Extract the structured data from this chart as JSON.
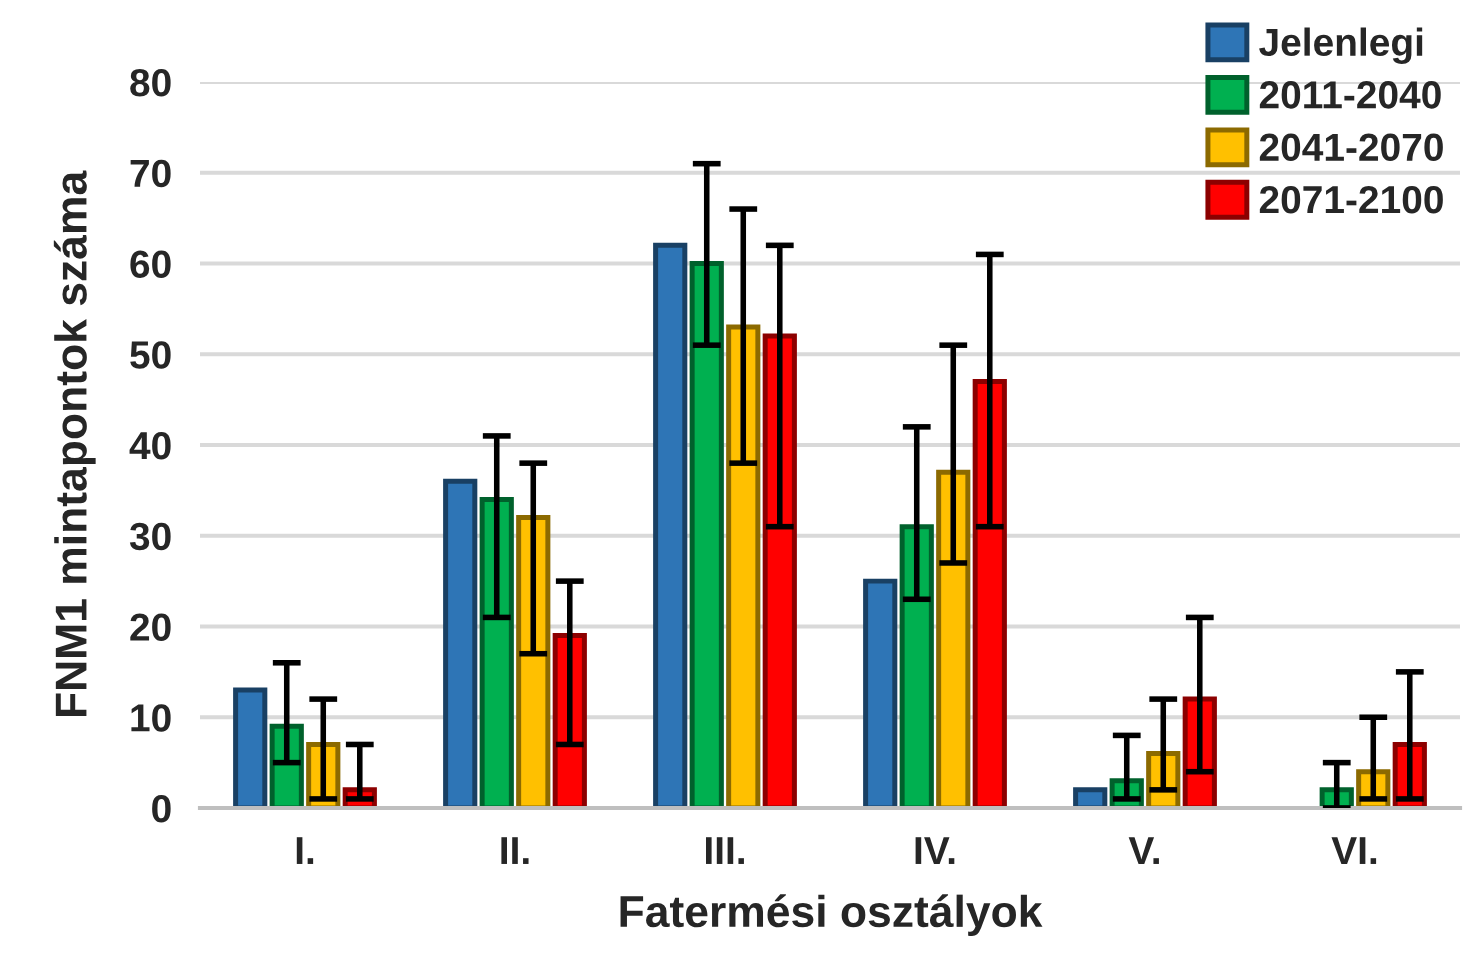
{
  "chart_data": {
    "type": "bar",
    "xlabel": "Fatermési osztályok",
    "ylabel": "FNM1 mintapontok száma",
    "categories": [
      "I.",
      "II.",
      "III.",
      "IV.",
      "V.",
      "VI."
    ],
    "series": [
      {
        "name": "Jelenlegi",
        "color": "#2e75b6",
        "values": [
          13,
          36,
          62,
          25,
          2,
          null
        ]
      },
      {
        "name": "2011-2040",
        "color": "#00b050",
        "values": [
          9,
          34,
          60,
          31,
          3,
          2
        ],
        "errors": [
          [
            5,
            16
          ],
          [
            21,
            41
          ],
          [
            51,
            71
          ],
          [
            23,
            42
          ],
          [
            1,
            8
          ],
          [
            0,
            5
          ]
        ]
      },
      {
        "name": "2041-2070",
        "color": "#ffc000",
        "values": [
          7,
          32,
          53,
          37,
          6,
          4
        ],
        "errors": [
          [
            1,
            12
          ],
          [
            17,
            38
          ],
          [
            38,
            66
          ],
          [
            27,
            51
          ],
          [
            2,
            12
          ],
          [
            1,
            10
          ]
        ]
      },
      {
        "name": "2071-2100",
        "color": "#ff0000",
        "values": [
          2,
          19,
          52,
          47,
          12,
          7
        ],
        "errors": [
          [
            1,
            7
          ],
          [
            7,
            25
          ],
          [
            31,
            62
          ],
          [
            31,
            61
          ],
          [
            4,
            21
          ],
          [
            1,
            15
          ]
        ]
      }
    ],
    "ylim": [
      0,
      80
    ],
    "yticks": [
      0,
      10,
      20,
      30,
      40,
      50,
      60,
      70,
      80
    ],
    "grid": "y",
    "legend": "top right"
  }
}
